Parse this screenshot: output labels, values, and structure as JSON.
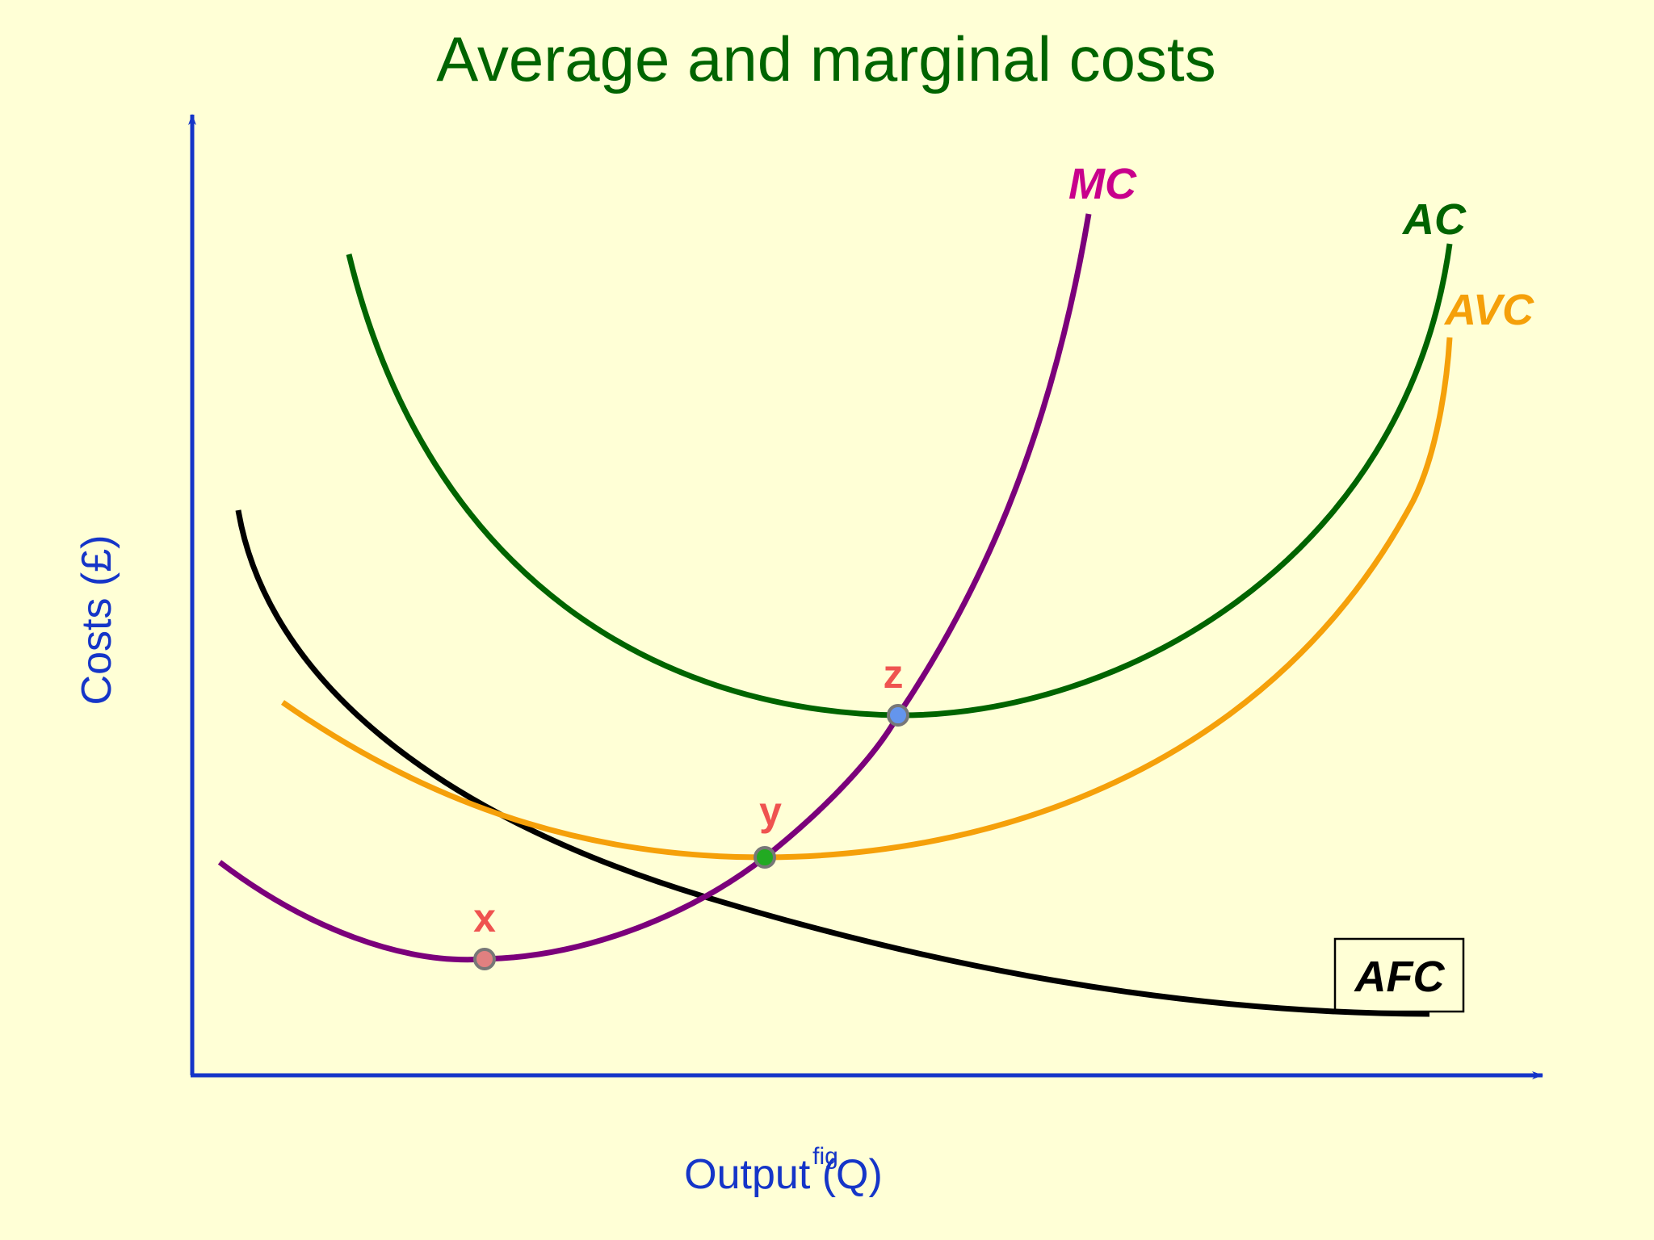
{
  "title": "Average and marginal costs",
  "axes": {
    "y_label": "Costs (£)",
    "x_label": "Output (Q)",
    "fig_marker": "fig"
  },
  "curves": {
    "mc": {
      "label": "MC",
      "color": "#7B007B",
      "label_color": "#C8008C"
    },
    "ac": {
      "label": "AC",
      "color": "#006400",
      "label_color": "#006400"
    },
    "avc": {
      "label": "AVC",
      "color": "#F5A00A",
      "label_color": "#F5A00A"
    },
    "afc": {
      "label": "AFC",
      "color": "#000000",
      "label_color": "#000000"
    }
  },
  "points": {
    "x": {
      "label": "x",
      "color": "#E08080"
    },
    "y": {
      "label": "y",
      "color": "#22AA22"
    },
    "z": {
      "label": "z",
      "color": "#6495ED"
    }
  },
  "colors": {
    "background": "#FFFFD6",
    "axis": "#1535C8",
    "title": "#006400",
    "point_label": "#EF5350"
  }
}
